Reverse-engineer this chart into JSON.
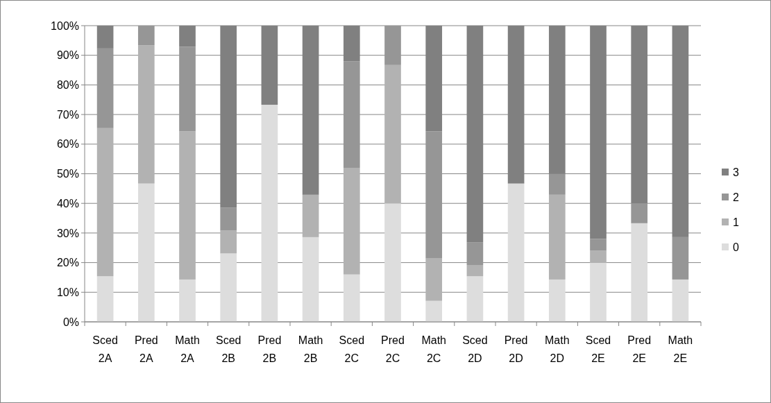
{
  "chart_data": {
    "type": "bar",
    "stacked": true,
    "categories": [
      "Sced 2A",
      "Pred 2A",
      "Math 2A",
      "Sced 2B",
      "Pred 2B",
      "Math 2B",
      "Sced 2C",
      "Pred 2C",
      "Math 2C",
      "Sced 2D",
      "Pred 2D",
      "Math 2D",
      "Sced 2E",
      "Pred 2E",
      "Math 2E"
    ],
    "series": [
      {
        "name": "0",
        "color": "#dddddd",
        "values": [
          15.4,
          46.7,
          14.3,
          23.1,
          73.3,
          28.6,
          16,
          40,
          7.1,
          15.4,
          46.7,
          14.3,
          20,
          33.3,
          14.3
        ]
      },
      {
        "name": "1",
        "color": "#b2b2b2",
        "values": [
          50,
          46.7,
          50,
          7.7,
          0,
          14.3,
          36,
          46.7,
          14.3,
          3.8,
          0,
          28.6,
          4,
          0,
          0
        ]
      },
      {
        "name": "2",
        "color": "#969696",
        "values": [
          26.9,
          6.6,
          28.6,
          7.7,
          0,
          0,
          36,
          13.3,
          42.9,
          7.7,
          0,
          7.1,
          4,
          6.7,
          14.3
        ]
      },
      {
        "name": "3",
        "color": "#808080",
        "values": [
          7.7,
          0,
          7.1,
          61.5,
          26.7,
          57.1,
          12,
          0,
          35.7,
          73.1,
          53.3,
          50,
          72,
          60,
          71.4
        ]
      }
    ],
    "ylim": [
      0,
      100
    ],
    "yticks": [
      {
        "value": 0,
        "label": "0%"
      },
      {
        "value": 10,
        "label": "10%"
      },
      {
        "value": 20,
        "label": "20%"
      },
      {
        "value": 30,
        "label": "30%"
      },
      {
        "value": 40,
        "label": "40%"
      },
      {
        "value": 50,
        "label": "50%"
      },
      {
        "value": 60,
        "label": "60%"
      },
      {
        "value": 70,
        "label": "70%"
      },
      {
        "value": 80,
        "label": "80%"
      },
      {
        "value": 90,
        "label": "90%"
      },
      {
        "value": 100,
        "label": "100%"
      }
    ],
    "grid": "y",
    "legend": "right"
  }
}
